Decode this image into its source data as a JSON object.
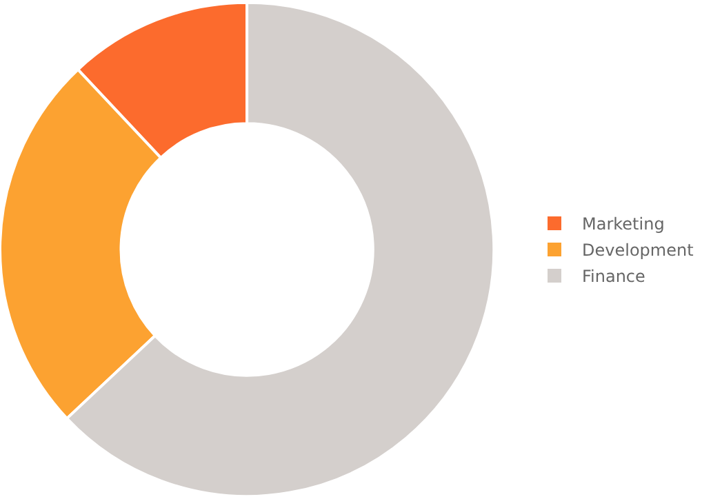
{
  "chart_data": {
    "type": "donut",
    "categories": [
      "Marketing",
      "Development",
      "Finance"
    ],
    "values": [
      12,
      25,
      63
    ],
    "colors": [
      "#fc6b2d",
      "#fca231",
      "#d4cfcc"
    ],
    "legend": "right"
  }
}
